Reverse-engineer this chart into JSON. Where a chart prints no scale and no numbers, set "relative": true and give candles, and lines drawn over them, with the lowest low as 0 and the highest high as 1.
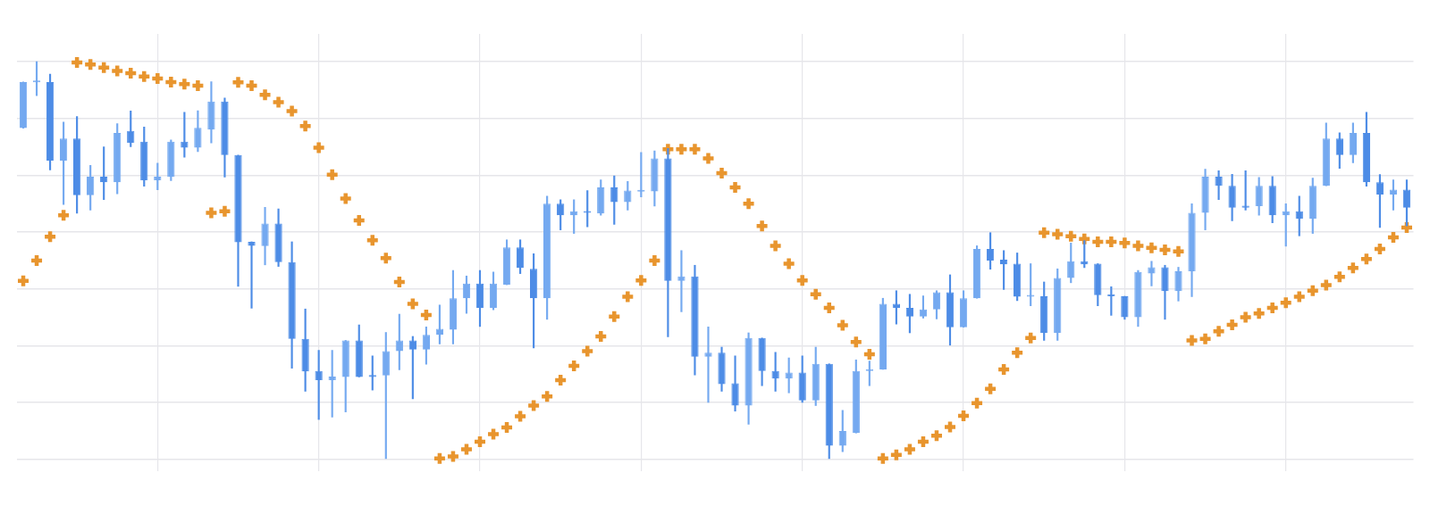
{
  "chart_data": {
    "type": "candlestick",
    "relative": true,
    "grid": true,
    "marker": "cross",
    "categories": [
      null,
      null,
      null,
      null,
      null,
      null,
      null,
      null,
      null,
      null,
      null,
      null,
      null,
      null,
      null,
      null,
      null,
      null,
      null,
      null,
      null,
      null,
      null,
      null,
      null,
      null,
      null,
      null,
      null,
      null,
      null,
      null,
      null,
      null,
      null,
      null,
      null,
      null,
      null,
      null,
      null,
      null,
      null,
      null,
      null,
      null,
      null,
      null,
      null,
      null,
      null,
      null,
      null,
      null,
      null,
      null,
      null,
      null,
      null,
      null,
      null,
      null,
      null,
      null,
      null,
      null,
      null,
      null,
      null,
      null,
      null,
      null,
      null,
      null,
      null,
      null,
      null,
      null,
      null,
      null,
      null,
      null,
      null,
      null,
      null,
      null,
      null,
      null,
      null,
      null,
      null,
      null,
      null,
      null,
      null,
      null,
      null,
      null,
      null,
      null,
      null,
      null,
      null,
      null
    ],
    "ohlc": [
      [
        0.833,
        0.949,
        0.833,
        0.949
      ],
      [
        0.948,
        1,
        0.915,
        0.949
      ],
      [
        0.949,
        0.969,
        0.728,
        0.751
      ],
      [
        0.751,
        0.848,
        0.641,
        0.807
      ],
      [
        0.807,
        0.862,
        0.619,
        0.664
      ],
      [
        0.664,
        0.739,
        0.627,
        0.711
      ],
      [
        0.711,
        0.786,
        0.653,
        0.697
      ],
      [
        0.697,
        0.844,
        0.668,
        0.821
      ],
      [
        0.826,
        0.876,
        0.786,
        0.796
      ],
      [
        0.799,
        0.836,
        0.687,
        0.702
      ],
      [
        0.702,
        0.745,
        0.678,
        0.711
      ],
      [
        0.71,
        0.803,
        0.701,
        0.799
      ],
      [
        0.799,
        0.873,
        0.76,
        0.784
      ],
      [
        0.784,
        0.877,
        0.774,
        0.834
      ],
      [
        0.829,
        0.95,
        0.796,
        0.9
      ],
      [
        0.9,
        0.909,
        0.71,
        0.765
      ],
      [
        0.765,
        0.765,
        0.435,
        0.546
      ],
      [
        0.547,
        0.547,
        0.38,
        0.537
      ],
      [
        0.536,
        0.634,
        0.489,
        0.593
      ],
      [
        0.593,
        0.63,
        0.485,
        0.496
      ],
      [
        0.496,
        0.547,
        0.229,
        0.303
      ],
      [
        0.303,
        0.378,
        0.171,
        0.221
      ],
      [
        0.222,
        0.274,
        0.1,
        0.199
      ],
      [
        0.199,
        0.274,
        0.106,
        0.208
      ],
      [
        0.207,
        0.299,
        0.119,
        0.299
      ],
      [
        0.299,
        0.338,
        0.207,
        0.207
      ],
      [
        0.212,
        0.26,
        0.174,
        0.207
      ],
      [
        0.211,
        0.319,
        0,
        0.272
      ],
      [
        0.272,
        0.365,
        0.225,
        0.299
      ],
      [
        0.299,
        0.309,
        0.152,
        0.276
      ],
      [
        0.276,
        0.333,
        0.239,
        0.313
      ],
      [
        0.313,
        0.388,
        0.29,
        0.328
      ],
      [
        0.326,
        0.475,
        0.29,
        0.405
      ],
      [
        0.405,
        0.461,
        0.367,
        0.442
      ],
      [
        0.442,
        0.475,
        0.334,
        0.381
      ],
      [
        0.381,
        0.471,
        0.376,
        0.442
      ],
      [
        0.439,
        0.552,
        0.439,
        0.533
      ],
      [
        0.533,
        0.552,
        0.467,
        0.481
      ],
      [
        0.479,
        0.517,
        0.28,
        0.405
      ],
      [
        0.405,
        0.662,
        0.352,
        0.643
      ],
      [
        0.643,
        0.653,
        0.577,
        0.614
      ],
      [
        0.614,
        0.653,
        0.568,
        0.624
      ],
      [
        0.624,
        0.676,
        0.585,
        0.62
      ],
      [
        0.618,
        0.703,
        0.614,
        0.684
      ],
      [
        0.684,
        0.713,
        0.591,
        0.647
      ],
      [
        0.647,
        0.699,
        0.627,
        0.676
      ],
      [
        0.673,
        0.772,
        0.66,
        0.676
      ],
      [
        0.674,
        0.776,
        0.637,
        0.757
      ],
      [
        0.757,
        0.782,
        0.308,
        0.449
      ],
      [
        0.449,
        0.525,
        0.371,
        0.46
      ],
      [
        0.46,
        0.488,
        0.212,
        0.258
      ],
      [
        0.258,
        0.333,
        0.143,
        0.268
      ],
      [
        0.268,
        0.282,
        0.171,
        0.189
      ],
      [
        0.191,
        0.26,
        0.121,
        0.135
      ],
      [
        0.135,
        0.318,
        0.088,
        0.305
      ],
      [
        0.305,
        0.305,
        0.185,
        0.222
      ],
      [
        0.222,
        0.269,
        0.171,
        0.203
      ],
      [
        0.203,
        0.255,
        0.167,
        0.218
      ],
      [
        0.218,
        0.26,
        0.143,
        0.148
      ],
      [
        0.148,
        0.282,
        0.135,
        0.24
      ],
      [
        0.24,
        0.24,
        0,
        0.034
      ],
      [
        0.034,
        0.123,
        0.019,
        0.071
      ],
      [
        0.066,
        0.25,
        0.066,
        0.222
      ],
      [
        0.222,
        0.247,
        0.185,
        0.226
      ],
      [
        0.226,
        0.405,
        0.226,
        0.391
      ],
      [
        0.391,
        0.424,
        0.34,
        0.381
      ],
      [
        0.381,
        0.415,
        0.318,
        0.359
      ],
      [
        0.359,
        0.411,
        0.355,
        0.377
      ],
      [
        0.377,
        0.424,
        0.353,
        0.42
      ],
      [
        0.42,
        0.464,
        0.287,
        0.332
      ],
      [
        0.332,
        0.424,
        0.332,
        0.405
      ],
      [
        0.405,
        0.537,
        0.405,
        0.529
      ],
      [
        0.529,
        0.57,
        0.478,
        0.5
      ],
      [
        0.502,
        0.525,
        0.427,
        0.49
      ],
      [
        0.492,
        0.519,
        0.399,
        0.409
      ],
      [
        0.409,
        0.492,
        0.386,
        0.41
      ],
      [
        0.41,
        0.446,
        0.299,
        0.318
      ],
      [
        0.318,
        0.479,
        0.299,
        0.456
      ],
      [
        0.456,
        0.544,
        0.444,
        0.498
      ],
      [
        0.498,
        0.55,
        0.482,
        0.49
      ],
      [
        0.492,
        0.492,
        0.386,
        0.413
      ],
      [
        0.415,
        0.434,
        0.362,
        0.41
      ],
      [
        0.41,
        0.41,
        0.352,
        0.357
      ],
      [
        0.357,
        0.475,
        0.334,
        0.471
      ],
      [
        0.467,
        0.498,
        0.436,
        0.483
      ],
      [
        0.483,
        0.488,
        0.352,
        0.423
      ],
      [
        0.423,
        0.483,
        0.398,
        0.473
      ],
      [
        0.473,
        0.643,
        0.409,
        0.62
      ],
      [
        0.62,
        0.73,
        0.577,
        0.711
      ],
      [
        0.711,
        0.726,
        0.653,
        0.688
      ],
      [
        0.688,
        0.717,
        0.6,
        0.633
      ],
      [
        0.638,
        0.726,
        0.627,
        0.633
      ],
      [
        0.637,
        0.709,
        0.614,
        0.688
      ],
      [
        0.688,
        0.711,
        0.595,
        0.614
      ],
      [
        0.614,
        0.643,
        0.536,
        0.624
      ],
      [
        0.624,
        0.662,
        0.562,
        0.605
      ],
      [
        0.605,
        0.707,
        0.568,
        0.688
      ],
      [
        0.688,
        0.846,
        0.688,
        0.807
      ],
      [
        0.807,
        0.821,
        0.732,
        0.765
      ],
      [
        0.765,
        0.846,
        0.746,
        0.821
      ],
      [
        0.821,
        0.873,
        0.687,
        0.697
      ],
      [
        0.697,
        0.716,
        0.583,
        0.666
      ],
      [
        0.666,
        0.703,
        0.627,
        0.678
      ],
      [
        0.678,
        0.703,
        0.587,
        0.633
      ]
    ],
    "colors": [
      "#74a9f0",
      "#74a9f0",
      "#4d8ce6",
      "#74a9f0",
      "#4d8ce6",
      "#74a9f0",
      "#4d8ce6",
      "#74a9f0",
      "#4d8ce6",
      "#4d8ce6",
      "#74a9f0",
      "#74a9f0",
      "#4d8ce6",
      "#74a9f0",
      "#74a9f0",
      "#4d8ce6",
      "#4d8ce6",
      "#4d8ce6",
      "#74a9f0",
      "#4d8ce6",
      "#4d8ce6",
      "#4d8ce6",
      "#4d8ce6",
      "#74a9f0",
      "#74a9f0",
      "#4d8ce6",
      "#4d8ce6",
      "#74a9f0",
      "#74a9f0",
      "#4d8ce6",
      "#74a9f0",
      "#74a9f0",
      "#74a9f0",
      "#74a9f0",
      "#4d8ce6",
      "#74a9f0",
      "#74a9f0",
      "#4d8ce6",
      "#4d8ce6",
      "#74a9f0",
      "#4d8ce6",
      "#74a9f0",
      "#4d8ce6",
      "#74a9f0",
      "#4d8ce6",
      "#74a9f0",
      "#74a9f0",
      "#74a9f0",
      "#4d8ce6",
      "#74a9f0",
      "#4d8ce6",
      "#74a9f0",
      "#4d8ce6",
      "#4d8ce6",
      "#74a9f0",
      "#4d8ce6",
      "#4d8ce6",
      "#74a9f0",
      "#4d8ce6",
      "#74a9f0",
      "#4d8ce6",
      "#74a9f0",
      "#74a9f0",
      "#74a9f0",
      "#74a9f0",
      "#4d8ce6",
      "#4d8ce6",
      "#74a9f0",
      "#74a9f0",
      "#4d8ce6",
      "#74a9f0",
      "#74a9f0",
      "#4d8ce6",
      "#4d8ce6",
      "#4d8ce6",
      "#74a9f0",
      "#4d8ce6",
      "#74a9f0",
      "#74a9f0",
      "#4d8ce6",
      "#4d8ce6",
      "#4d8ce6",
      "#4d8ce6",
      "#74a9f0",
      "#74a9f0",
      "#4d8ce6",
      "#74a9f0",
      "#74a9f0",
      "#74a9f0",
      "#4d8ce6",
      "#4d8ce6",
      "#4d8ce6",
      "#74a9f0",
      "#4d8ce6",
      "#74a9f0",
      "#4d8ce6",
      "#74a9f0",
      "#74a9f0",
      "#4d8ce6",
      "#74a9f0",
      "#4d8ce6",
      "#4d8ce6",
      "#74a9f0",
      "#4d8ce6"
    ],
    "series": [
      {
        "type": "scatter",
        "color": "#e8952e",
        "values": [
          0.449,
          0.5,
          0.56,
          0.614,
          0.998,
          0.993,
          0.985,
          0.977,
          0.971,
          0.963,
          0.958,
          0.949,
          0.944,
          0.94,
          0.62,
          0.624,
          0.948,
          0.94,
          0.917,
          0.898,
          0.876,
          0.838,
          0.784,
          0.716,
          0.656,
          0.601,
          0.551,
          0.506,
          0.446,
          0.391,
          0.363,
          0.002,
          0.007,
          0.025,
          0.044,
          0.063,
          0.08,
          0.108,
          0.135,
          0.158,
          0.199,
          0.235,
          0.272,
          0.309,
          0.359,
          0.409,
          0.45,
          0.5,
          0.78,
          0.78,
          0.78,
          0.757,
          0.72,
          0.684,
          0.643,
          0.587,
          0.537,
          0.492,
          0.45,
          0.415,
          0.381,
          0.337,
          0.295,
          0.264,
          0.002,
          0.011,
          0.025,
          0.044,
          0.059,
          0.081,
          0.109,
          0.141,
          0.177,
          0.226,
          0.268,
          0.305,
          0.57,
          0.566,
          0.561,
          0.554,
          0.547,
          0.547,
          0.544,
          0.537,
          0.532,
          0.527,
          0.523,
          0.299,
          0.303,
          0.322,
          0.338,
          0.357,
          0.367,
          0.381,
          0.394,
          0.409,
          0.424,
          0.438,
          0.459,
          0.481,
          0.504,
          0.529,
          0.558,
          0.583
        ]
      }
    ]
  }
}
